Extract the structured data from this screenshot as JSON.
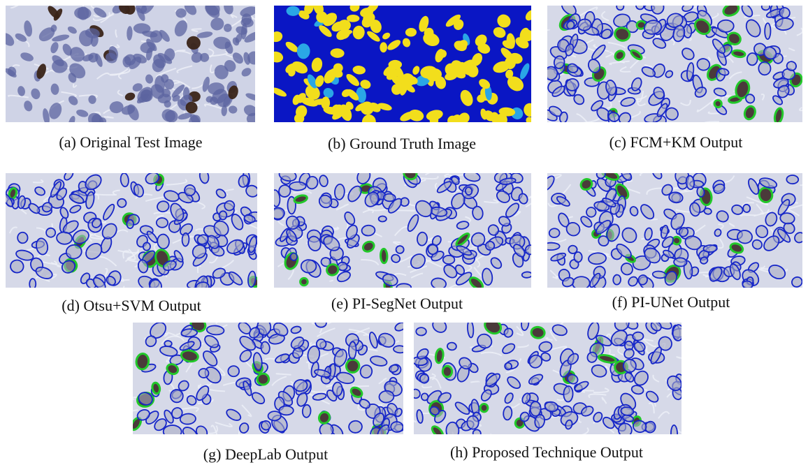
{
  "figure": {
    "panels": [
      {
        "caption": "(a) Original Test Image"
      },
      {
        "caption": "(b) Ground Truth Image"
      },
      {
        "caption": "(c) FCM+KM Output"
      },
      {
        "caption": "(d) Otsu+SVM Output"
      },
      {
        "caption": "(e) PI-SegNet Output"
      },
      {
        "caption": "(f) PI-UNet Output"
      },
      {
        "caption": "(g) DeepLab Output"
      },
      {
        "caption": "(h) Proposed Technique Output"
      }
    ]
  }
}
